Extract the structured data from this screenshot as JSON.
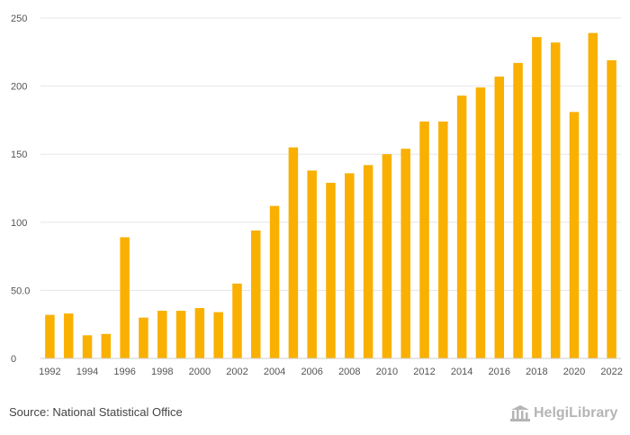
{
  "chart_data": {
    "type": "bar",
    "title": "",
    "xlabel": "",
    "ylabel": "",
    "ylim": [
      0,
      250
    ],
    "yticks": [
      0,
      50,
      100,
      150,
      200,
      250
    ],
    "ytick_labels": [
      "0",
      "50.0",
      "100",
      "150",
      "200",
      "250"
    ],
    "categories": [
      "1992",
      "1993",
      "1994",
      "1995",
      "1996",
      "1997",
      "1998",
      "1999",
      "2000",
      "2001",
      "2002",
      "2003",
      "2004",
      "2005",
      "2006",
      "2007",
      "2008",
      "2009",
      "2010",
      "2011",
      "2012",
      "2013",
      "2014",
      "2015",
      "2016",
      "2017",
      "2018",
      "2019",
      "2020",
      "2021",
      "2022"
    ],
    "xtick_labels": [
      "1992",
      "1994",
      "1996",
      "1998",
      "2000",
      "2002",
      "2004",
      "2006",
      "2008",
      "2010",
      "2012",
      "2014",
      "2016",
      "2018",
      "2020",
      "2022"
    ],
    "values": [
      32,
      33,
      17,
      18,
      89,
      30,
      35,
      35,
      37,
      34,
      55,
      94,
      112,
      155,
      138,
      129,
      136,
      142,
      150,
      154,
      174,
      174,
      193,
      199,
      207,
      217,
      236,
      232,
      181,
      239,
      219
    ],
    "bar_color": "#f9b000",
    "grid": true
  },
  "footer": {
    "source": "Source: National Statistical Office",
    "logo_text": "HelgiLibrary"
  }
}
